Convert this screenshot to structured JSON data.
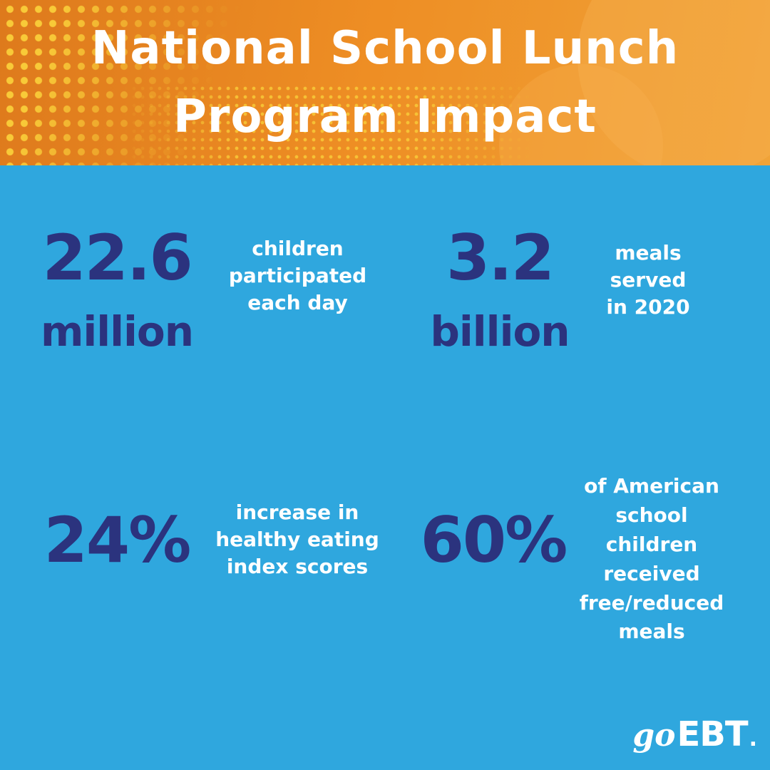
{
  "header": {
    "title_line1": "National School Lunch",
    "title_line2": "Program Impact"
  },
  "stats": [
    {
      "value": "22.6",
      "unit": "million",
      "label": "children participated each day",
      "label_lines": [
        "children",
        "participated",
        "each day"
      ]
    },
    {
      "value": "3.2",
      "unit": "billion",
      "label": "meals served in 2020",
      "label_lines": [
        "meals",
        "served",
        "in 2020"
      ]
    },
    {
      "value": "24%",
      "unit": "",
      "label": "increase in healthy eating index scores",
      "label_lines": [
        "increase in",
        "healthy eating",
        "index scores"
      ]
    },
    {
      "value": "60%",
      "unit": "",
      "label": "of American school children received free/reduced meals",
      "label_lines": [
        "of American",
        "school",
        "children",
        "received",
        "free/reduced",
        "meals"
      ]
    }
  ],
  "logo": {
    "go": "go",
    "ebt": "EBT",
    "mark": "."
  },
  "colors": {
    "header_orange_dark": "#DE7A1C",
    "header_orange": "#EE8E24",
    "header_orange_light": "#F0A338",
    "halftone_yellow": "#F9CE3A",
    "body_blue": "#2FA7DE",
    "stat_navy": "#2B337E",
    "text_white": "#FFFFFF"
  }
}
